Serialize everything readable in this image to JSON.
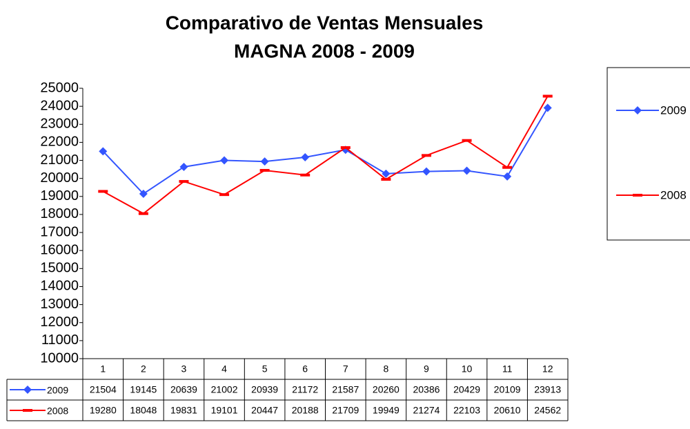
{
  "chart_data": {
    "type": "line",
    "title": "Comparativo de Ventas Mensuales",
    "subtitle": "MAGNA 2008 - 2009",
    "categories": [
      "1",
      "2",
      "3",
      "4",
      "5",
      "6",
      "7",
      "8",
      "9",
      "10",
      "11",
      "12"
    ],
    "series": [
      {
        "name": "2009",
        "color": "#3355ff",
        "marker": "diamond",
        "values": [
          21504,
          19145,
          20639,
          21002,
          20939,
          21172,
          21587,
          20260,
          20386,
          20429,
          20109,
          23913
        ]
      },
      {
        "name": "2008",
        "color": "#ff0000",
        "marker": "dash",
        "values": [
          19280,
          18048,
          19831,
          19101,
          20447,
          20188,
          21709,
          19949,
          21274,
          22103,
          20610,
          24562
        ]
      }
    ],
    "ylim": [
      10000,
      25000
    ],
    "yticks": [
      10000,
      11000,
      12000,
      13000,
      14000,
      15000,
      16000,
      17000,
      18000,
      19000,
      20000,
      21000,
      22000,
      23000,
      24000,
      25000
    ],
    "grid": false,
    "legend": "right"
  }
}
